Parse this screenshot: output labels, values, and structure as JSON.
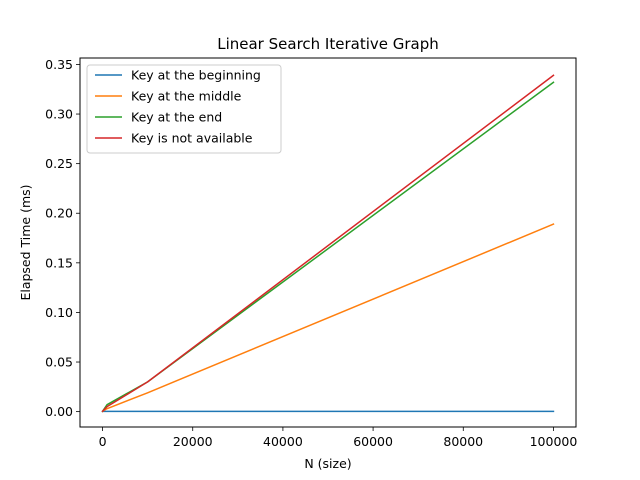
{
  "chart_data": {
    "type": "line",
    "title": "Linear Search Iterative Graph",
    "xlabel": "N (size)",
    "ylabel": "Elapsed Time (ms)",
    "xlim": [
      -5000,
      105000
    ],
    "ylim": [
      -0.0155,
      0.3565
    ],
    "x_ticks": [
      0,
      20000,
      40000,
      60000,
      80000,
      100000
    ],
    "x_tick_labels": [
      "0",
      "20000",
      "40000",
      "60000",
      "80000",
      "100000"
    ],
    "y_ticks": [
      0.0,
      0.05,
      0.1,
      0.15,
      0.2,
      0.25,
      0.3,
      0.35
    ],
    "y_tick_labels": [
      "0.00",
      "0.05",
      "0.10",
      "0.15",
      "0.20",
      "0.25",
      "0.30",
      "0.35"
    ],
    "grid": false,
    "legend_position": "top-left",
    "x": [
      10,
      100,
      1000,
      10000,
      100000
    ],
    "series": [
      {
        "name": "Key at the beginning",
        "color": "#1f77b4",
        "values": [
          0.0003,
          0.0003,
          0.0003,
          0.0003,
          0.0003
        ]
      },
      {
        "name": "Key at the middle",
        "color": "#ff7f0e",
        "values": [
          0.0003,
          0.0006,
          0.003,
          0.019,
          0.189
        ]
      },
      {
        "name": "Key at the end",
        "color": "#2ca02c",
        "values": [
          0.0003,
          0.001,
          0.007,
          0.03,
          0.332
        ]
      },
      {
        "name": "Key is not available",
        "color": "#d62728",
        "values": [
          0.0003,
          0.0009,
          0.005,
          0.03,
          0.339
        ]
      }
    ]
  }
}
